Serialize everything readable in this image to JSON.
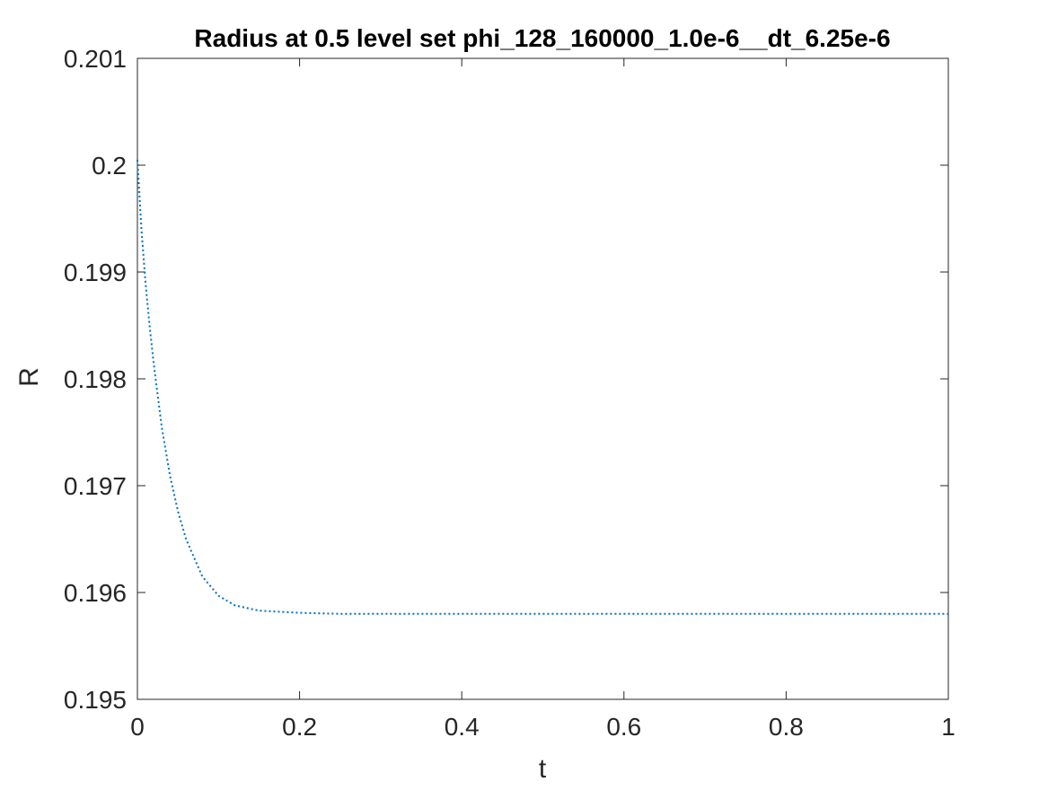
{
  "chart_data": {
    "type": "line",
    "title": "Radius at 0.5 level set phi_128_160000_1.0e-6__dt_6.25e-6",
    "xlabel": "t",
    "ylabel": "R",
    "xlim": [
      0,
      1
    ],
    "ylim": [
      0.195,
      0.201
    ],
    "x_ticks": [
      "0",
      "0.2",
      "0.4",
      "0.6",
      "0.8",
      "1"
    ],
    "y_ticks": [
      "0.195",
      "0.196",
      "0.197",
      "0.198",
      "0.199",
      "0.2",
      "0.201"
    ],
    "grid": false,
    "line_style": "dotted",
    "series": [
      {
        "color": "#0072BD",
        "x": [
          0,
          0.005,
          0.01,
          0.015,
          0.02,
          0.03,
          0.04,
          0.05,
          0.06,
          0.08,
          0.1,
          0.12,
          0.15,
          0.2,
          0.25,
          0.3,
          0.4,
          0.5,
          0.6,
          0.7,
          0.8,
          0.9,
          1.0
        ],
        "y": [
          0.20005,
          0.1994,
          0.1989,
          0.1985,
          0.19815,
          0.19755,
          0.1971,
          0.19676,
          0.1965,
          0.19615,
          0.19597,
          0.19588,
          0.19583,
          0.19581,
          0.1958,
          0.1958,
          0.1958,
          0.1958,
          0.1958,
          0.1958,
          0.1958,
          0.1958,
          0.1958
        ]
      }
    ]
  }
}
